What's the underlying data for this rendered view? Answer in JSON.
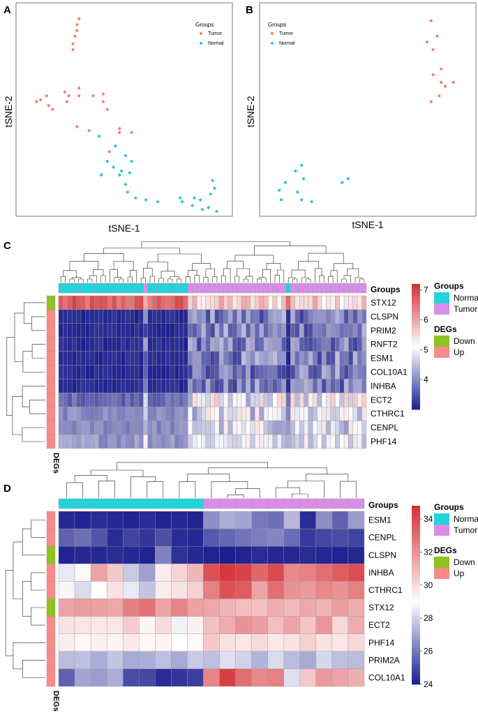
{
  "panels": {
    "A": "A",
    "B": "B",
    "C": "C",
    "D": "D"
  },
  "colors": {
    "tumor": "#f28072",
    "normal": "#2ec4d4",
    "group_normal": "#22d3dc",
    "group_tumor": "#d88ee8",
    "deg_down": "#8dc21f",
    "deg_up": "#f78b88",
    "heat_low": "#1c1f8f",
    "heat_mid": "#ffffff",
    "heat_high": "#d42d32"
  },
  "chart_data": [
    {
      "id": "A",
      "type": "scatter",
      "xlabel": "tSNE-1",
      "ylabel": "tSNE-2",
      "legend_title": "Groups",
      "legend": [
        "Tumor",
        "Normal"
      ],
      "legend_position": "top-right",
      "xlim": [
        0,
        100
      ],
      "ylim": [
        0,
        100
      ],
      "series": [
        {
          "name": "Tumor",
          "points": [
            [
              28,
              96
            ],
            [
              27,
              93
            ],
            [
              27,
              90
            ],
            [
              26,
              87
            ],
            [
              25,
              83
            ],
            [
              25,
              80
            ],
            [
              12,
              56
            ],
            [
              9,
              54
            ],
            [
              13,
              51
            ],
            [
              7,
              53
            ],
            [
              15,
              49
            ],
            [
              21,
              58
            ],
            [
              23,
              56
            ],
            [
              22,
              53
            ],
            [
              28,
              60
            ],
            [
              28,
              56
            ],
            [
              35,
              56
            ],
            [
              40,
              57
            ],
            [
              40,
              53
            ],
            [
              42,
              49
            ],
            [
              27,
              40
            ],
            [
              33,
              38
            ],
            [
              48,
              39
            ],
            [
              48,
              37
            ],
            [
              54,
              37
            ],
            [
              43,
              27
            ]
          ]
        },
        {
          "name": "Normal",
          "points": [
            [
              38,
              35
            ],
            [
              46,
              30
            ],
            [
              51,
              25
            ],
            [
              42,
              22
            ],
            [
              45,
              19
            ],
            [
              54,
              22
            ],
            [
              49,
              17
            ],
            [
              53,
              16
            ],
            [
              39,
              15
            ],
            [
              48,
              15
            ],
            [
              51,
              10
            ],
            [
              52,
              6
            ],
            [
              56,
              3
            ],
            [
              61,
              2
            ],
            [
              67,
              1
            ],
            [
              78,
              3
            ],
            [
              79,
              1
            ],
            [
              85,
              3
            ],
            [
              84,
              -1
            ],
            [
              88,
              2
            ],
            [
              89,
              -3
            ],
            [
              94,
              12
            ],
            [
              93,
              5
            ],
            [
              95,
              8
            ],
            [
              92,
              -2
            ],
            [
              96,
              -4
            ]
          ]
        }
      ]
    },
    {
      "id": "B",
      "type": "scatter",
      "xlabel": "tSNE-1",
      "ylabel": "tSNE-2",
      "legend_title": "Groups",
      "legend": [
        "Tumor",
        "Normal"
      ],
      "legend_position": "top-left",
      "xlim": [
        0,
        100
      ],
      "ylim": [
        0,
        100
      ],
      "series": [
        {
          "name": "Tumor",
          "points": [
            [
              82,
              95
            ],
            [
              85,
              87
            ],
            [
              80,
              84
            ],
            [
              83,
              80
            ],
            [
              87,
              70
            ],
            [
              83,
              67
            ],
            [
              87,
              63
            ],
            [
              89,
              61
            ],
            [
              93,
              63
            ],
            [
              86,
              56
            ],
            [
              82,
              53
            ]
          ]
        },
        {
          "name": "Normal",
          "points": [
            [
              18,
              20
            ],
            [
              15,
              17
            ],
            [
              19,
              13
            ],
            [
              10,
              11
            ],
            [
              7,
              7
            ],
            [
              16,
              6
            ],
            [
              8,
              2
            ],
            [
              18,
              2
            ],
            [
              23,
              1
            ],
            [
              38,
              11
            ],
            [
              41,
              13
            ]
          ]
        }
      ]
    },
    {
      "id": "C",
      "type": "heatmap",
      "rows": [
        "STX12",
        "CLSPN",
        "PRIM2",
        "RNFT2",
        "ESM1",
        "COL10A1",
        "INHBA",
        "ECT2",
        "CTHRC1",
        "CENPL",
        "PHF14"
      ],
      "row_degs": [
        "Down",
        "Up",
        "Up",
        "Up",
        "Up",
        "Up",
        "Up",
        "Up",
        "Up",
        "Up",
        "Up"
      ],
      "col_groups": [
        "Normal",
        "Normal",
        "Normal",
        "Normal",
        "Normal",
        "Normal",
        "Normal",
        "Normal",
        "Normal",
        "Normal",
        "Normal",
        "Normal",
        "Normal",
        "Normal",
        "Normal",
        "Normal",
        "Normal",
        "Normal",
        "Normal",
        "Tumor",
        "Normal",
        "Normal",
        "Normal",
        "Normal",
        "Normal",
        "Normal",
        "Normal",
        "Normal",
        "Normal",
        "Tumor",
        "Tumor",
        "Tumor",
        "Tumor",
        "Tumor",
        "Tumor",
        "Tumor",
        "Tumor",
        "Tumor",
        "Tumor",
        "Tumor",
        "Tumor",
        "Tumor",
        "Tumor",
        "Tumor",
        "Tumor",
        "Tumor",
        "Tumor",
        "Tumor",
        "Tumor",
        "Tumor",
        "Tumor",
        "Normal",
        "Tumor",
        "Tumor",
        "Tumor",
        "Tumor",
        "Tumor",
        "Tumor",
        "Tumor",
        "Tumor",
        "Tumor",
        "Tumor",
        "Tumor",
        "Tumor",
        "Tumor",
        "Tumor",
        "Tumor",
        "Tumor",
        "Tumor"
      ],
      "scale": {
        "min": 3,
        "max": 7.2,
        "mid": 5.1,
        "ticks": [
          4,
          5,
          6,
          7
        ]
      },
      "groups_label": "Groups",
      "degs_label": "DEGs"
    },
    {
      "id": "D",
      "type": "heatmap",
      "rows": [
        "ESM1",
        "CENPL",
        "CLSPN",
        "INHBA",
        "CTHRC1",
        "STX12",
        "ECT2",
        "PHF14",
        "PRIM2A",
        "COL10A1"
      ],
      "row_degs": [
        "Up",
        "Up",
        "Down",
        "Up",
        "Up",
        "Down",
        "Up",
        "Up",
        "Up",
        "Up"
      ],
      "col_groups": [
        "Normal",
        "Normal",
        "Normal",
        "Normal",
        "Normal",
        "Normal",
        "Normal",
        "Normal",
        "Normal",
        "Tumor",
        "Tumor",
        "Tumor",
        "Tumor",
        "Tumor",
        "Tumor",
        "Tumor",
        "Tumor",
        "Tumor",
        "Tumor"
      ],
      "scale": {
        "min": 24,
        "max": 34.8,
        "mid": 29,
        "ticks": [
          24,
          26,
          28,
          30,
          32,
          34
        ]
      },
      "groups_label": "Groups",
      "degs_label": "DEGs",
      "values": [
        [
          24.2,
          24.1,
          24.3,
          24.2,
          24.1,
          24.3,
          24.1,
          24.2,
          24.1,
          26.5,
          27.2,
          27.0,
          26.0,
          25.8,
          27.4,
          24.3,
          26.5,
          25.5,
          26.8
        ],
        [
          25.5,
          25.8,
          25.2,
          24.3,
          24.8,
          24.5,
          25.1,
          24.3,
          24.2,
          25.3,
          25.6,
          25.9,
          26.1,
          26.3,
          25.7,
          24.6,
          24.9,
          25.0,
          24.8
        ],
        [
          24.1,
          24.2,
          24.2,
          24.3,
          24.2,
          24.1,
          26.2,
          24.4,
          24.2,
          24.1,
          24.0,
          24.1,
          24.3,
          24.2,
          24.2,
          24.3,
          24.2,
          24.1,
          24.2
        ],
        [
          28.5,
          29.2,
          31.5,
          30.5,
          27.8,
          26.9,
          29.5,
          30.2,
          31.0,
          33.8,
          34.5,
          34.2,
          33.2,
          34.0,
          32.3,
          32.5,
          33.0,
          33.5,
          33.9
        ],
        [
          29.3,
          28.2,
          29.0,
          29.8,
          28.5,
          27.7,
          29.5,
          29.8,
          30.3,
          32.5,
          33.8,
          33.5,
          31.5,
          33.0,
          32.0,
          31.8,
          32.3,
          32.0,
          32.5
        ],
        [
          31.5,
          31.7,
          31.6,
          31.4,
          32.5,
          32.9,
          31.5,
          32.4,
          31.6,
          31.4,
          31.0,
          30.8,
          30.7,
          31.2,
          30.9,
          31.4,
          31.1,
          31.7,
          31.3
        ],
        [
          29.8,
          29.7,
          29.6,
          29.7,
          30.4,
          29.3,
          30.0,
          28.7,
          29.4,
          30.7,
          31.3,
          32.0,
          31.7,
          30.8,
          31.5,
          30.6,
          31.9,
          30.1,
          31.3
        ],
        [
          29.5,
          29.2,
          29.4,
          29.3,
          29.6,
          29.2,
          29.3,
          29.0,
          29.2,
          30.5,
          29.8,
          29.7,
          30.0,
          29.6,
          29.8,
          30.3,
          29.8,
          29.7,
          30.1
        ],
        [
          27.5,
          27.6,
          27.2,
          27.7,
          27.1,
          27.2,
          27.6,
          27.1,
          27.8,
          27.6,
          28.3,
          28.0,
          27.3,
          28.2,
          27.5,
          27.1,
          28.1,
          27.6,
          27.5
        ],
        [
          25.5,
          27.0,
          26.8,
          27.2,
          25.0,
          24.9,
          24.3,
          24.5,
          24.7,
          32.4,
          34.3,
          33.0,
          32.3,
          32.5,
          28.3,
          30.5,
          31.8,
          31.5,
          31.2
        ]
      ]
    }
  ]
}
